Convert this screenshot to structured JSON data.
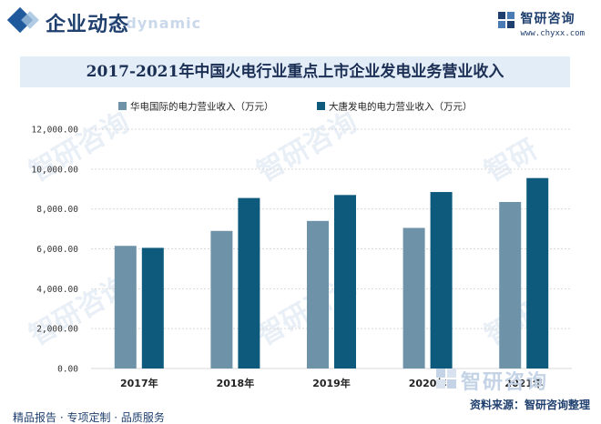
{
  "header": {
    "title": "企业动态",
    "bg_text": "e dynamic",
    "brand_name": "智研咨询",
    "brand_url": "www.chyxx.com"
  },
  "footer": {
    "left": "精品报告 · 专项定制 · 品质服务",
    "source": "资料来源：智研咨询整理",
    "bottom_logo": "智研咨询"
  },
  "colors": {
    "series1": "#6e93a8",
    "series2": "#0d5a7d",
    "title_band": "#e3edf7",
    "brand": "#1f3f6e"
  },
  "chart_data": {
    "type": "bar",
    "title": "2017-2021年中国火电行业重点上市企业发电业务营业收入",
    "categories": [
      "2017年",
      "2018年",
      "2019年",
      "2020年",
      "2021年"
    ],
    "series": [
      {
        "name": "华电国际的电力营业收入（万元）",
        "values": [
          6150,
          6900,
          7400,
          7050,
          8350
        ]
      },
      {
        "name": "大唐发电的电力营业收入（万元）",
        "values": [
          6050,
          8550,
          8700,
          8850,
          9550
        ]
      }
    ],
    "yticks": [
      "0.00",
      "2,000.00",
      "4,000.00",
      "6,000.00",
      "8,000.00",
      "10,000.00",
      "12,000.00"
    ],
    "ylim": [
      0,
      12000
    ],
    "grid": true,
    "legend": "top"
  }
}
